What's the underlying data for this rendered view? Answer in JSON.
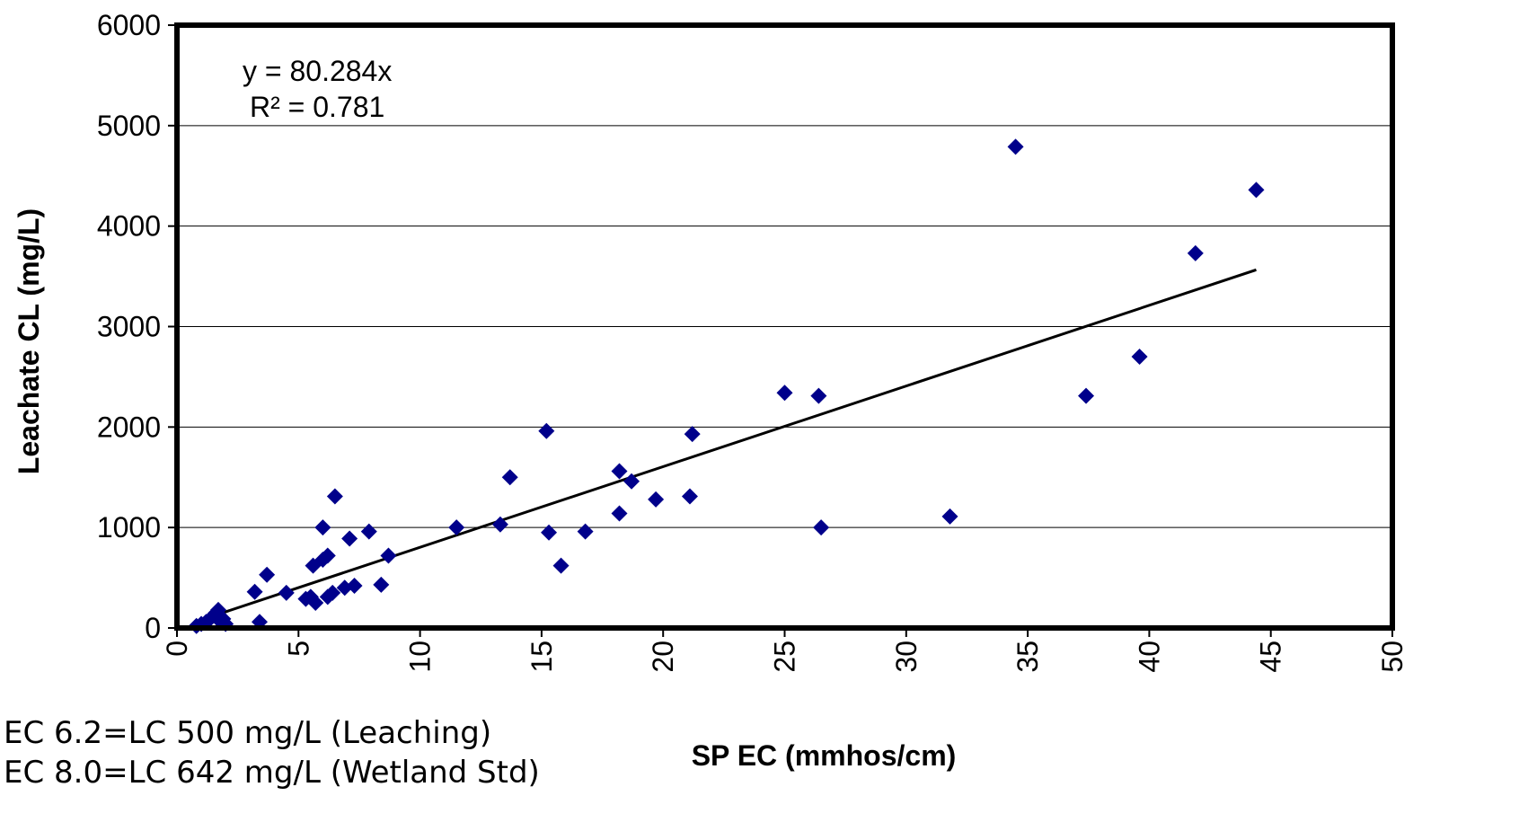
{
  "chart_data": {
    "type": "scatter",
    "xlabel": "SP EC (mmhos/cm)",
    "ylabel": "Leachate CL (mg/L)",
    "xlim": [
      0,
      50
    ],
    "ylim": [
      0,
      6000
    ],
    "x_ticks": [
      "0",
      "5",
      "10",
      "15",
      "20",
      "25",
      "30",
      "35",
      "40",
      "45",
      "50"
    ],
    "y_ticks": [
      "0",
      "1000",
      "2000",
      "3000",
      "4000",
      "5000",
      "6000"
    ],
    "grid": "horizontal",
    "marker_color": "#00008B",
    "trendline": {
      "equation": "y = 80.284x",
      "r_squared": "R² = 0.781",
      "slope": 80.284,
      "x_range": [
        0.8,
        44.4
      ],
      "color": "#000000"
    },
    "points": [
      {
        "x": 0.8,
        "y": 20
      },
      {
        "x": 1.0,
        "y": 40
      },
      {
        "x": 1.2,
        "y": 60
      },
      {
        "x": 1.4,
        "y": 100
      },
      {
        "x": 1.6,
        "y": 150
      },
      {
        "x": 1.7,
        "y": 180
      },
      {
        "x": 1.8,
        "y": 60
      },
      {
        "x": 1.9,
        "y": 90
      },
      {
        "x": 2.0,
        "y": 40
      },
      {
        "x": 3.2,
        "y": 360
      },
      {
        "x": 3.4,
        "y": 60
      },
      {
        "x": 3.7,
        "y": 530
      },
      {
        "x": 4.5,
        "y": 350
      },
      {
        "x": 5.3,
        "y": 290
      },
      {
        "x": 5.5,
        "y": 310
      },
      {
        "x": 5.7,
        "y": 250
      },
      {
        "x": 5.6,
        "y": 620
      },
      {
        "x": 6.0,
        "y": 680
      },
      {
        "x": 6.0,
        "y": 1000
      },
      {
        "x": 6.2,
        "y": 720
      },
      {
        "x": 6.2,
        "y": 310
      },
      {
        "x": 6.4,
        "y": 350
      },
      {
        "x": 6.5,
        "y": 1310
      },
      {
        "x": 6.9,
        "y": 400
      },
      {
        "x": 7.1,
        "y": 890
      },
      {
        "x": 7.3,
        "y": 420
      },
      {
        "x": 7.9,
        "y": 960
      },
      {
        "x": 8.4,
        "y": 430
      },
      {
        "x": 8.7,
        "y": 720
      },
      {
        "x": 11.5,
        "y": 1000
      },
      {
        "x": 13.3,
        "y": 1030
      },
      {
        "x": 13.7,
        "y": 1500
      },
      {
        "x": 15.2,
        "y": 1960
      },
      {
        "x": 15.3,
        "y": 950
      },
      {
        "x": 15.8,
        "y": 620
      },
      {
        "x": 16.8,
        "y": 960
      },
      {
        "x": 18.2,
        "y": 1560
      },
      {
        "x": 18.2,
        "y": 1140
      },
      {
        "x": 18.7,
        "y": 1460
      },
      {
        "x": 19.7,
        "y": 1280
      },
      {
        "x": 21.1,
        "y": 1310
      },
      {
        "x": 21.2,
        "y": 1930
      },
      {
        "x": 25.0,
        "y": 2340
      },
      {
        "x": 26.4,
        "y": 2310
      },
      {
        "x": 26.5,
        "y": 1000
      },
      {
        "x": 31.8,
        "y": 1110
      },
      {
        "x": 34.5,
        "y": 4790
      },
      {
        "x": 37.4,
        "y": 2310
      },
      {
        "x": 39.6,
        "y": 2700
      },
      {
        "x": 41.9,
        "y": 3730
      },
      {
        "x": 44.4,
        "y": 4360
      }
    ]
  },
  "notes": [
    "EC 6.2=LC 500 mg/L (Leaching)",
    "EC 8.0=LC 642 mg/L (Wetland Std)"
  ]
}
